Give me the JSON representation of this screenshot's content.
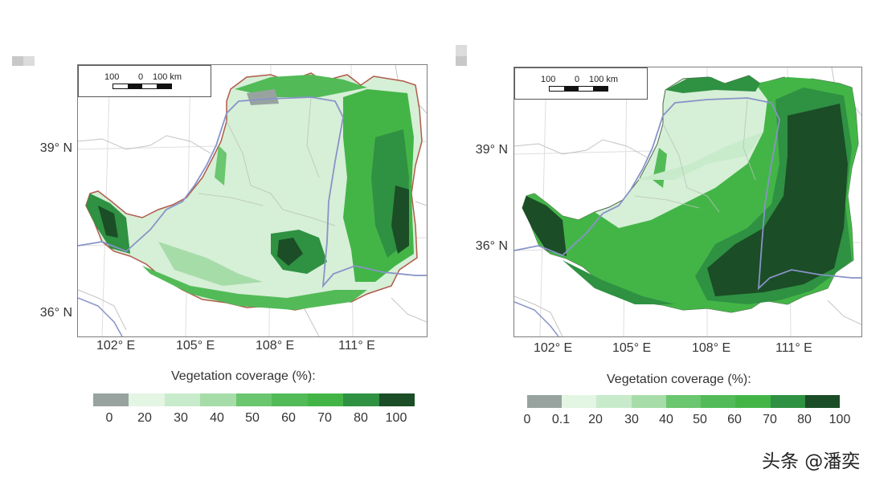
{
  "panels": [
    {
      "scale": {
        "left": "100",
        "mid": "0",
        "right": "100 km"
      },
      "lat_labels": [
        "39° N",
        "36° N"
      ],
      "lon_labels": [
        "102° E",
        "105° E",
        "108° E",
        "111° E"
      ],
      "legend": {
        "title": "Vegetation coverage (%):",
        "ticks": [
          "0",
          "20",
          "30",
          "40",
          "50",
          "60",
          "70",
          "80",
          "100"
        ],
        "colors": [
          "#98a3a0",
          "#e3f5e3",
          "#c8ebcb",
          "#a6dca8",
          "#6ac66f",
          "#52bb57",
          "#43b547",
          "#2f9142",
          "#1b4d26"
        ]
      }
    },
    {
      "scale": {
        "left": "100",
        "mid": "0",
        "right": "100 km"
      },
      "lat_labels": [
        "39° N",
        "36° N"
      ],
      "lon_labels": [
        "102° E",
        "105° E",
        "108° E",
        "111° E"
      ],
      "legend": {
        "title": "Vegetation coverage (%):",
        "ticks": [
          "0",
          "0.1",
          "20",
          "30",
          "40",
          "50",
          "60",
          "70",
          "80",
          "100"
        ],
        "colors": [
          "#98a3a0",
          "#e3f5e3",
          "#c8ebcb",
          "#a6dca8",
          "#6ac66f",
          "#52bb57",
          "#43b547",
          "#2f9142",
          "#1b4d26"
        ]
      }
    }
  ],
  "watermark": "头条 @潘奕"
}
